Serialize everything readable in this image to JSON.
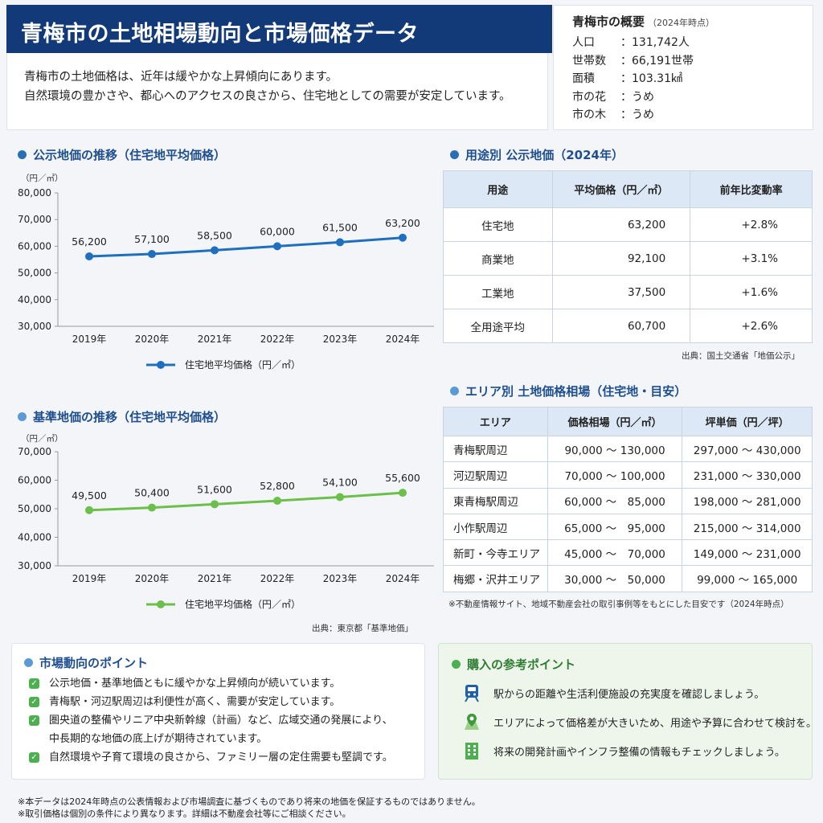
{
  "header": {
    "title": "青梅市の土地相場動向と市場価格データ",
    "intro_line1": "青梅市の土地価格は、近年は緩やかな上昇傾向にあります。",
    "intro_line2": "自然環境の豊かさや、都心へのアクセスの良さから、住宅地としての需要が安定しています。"
  },
  "overview": {
    "title": "青梅市の概要",
    "as_of": "（2024年時点）",
    "rows": [
      {
        "key": "人口",
        "value": "：131,742人"
      },
      {
        "key": "世帯数",
        "value": "：66,191世帯"
      },
      {
        "key": "面積",
        "value": "：103.31㎢"
      },
      {
        "key": "市の花",
        "value": "：うめ"
      },
      {
        "key": "市の木",
        "value": "：うめ"
      }
    ]
  },
  "chart1_section": {
    "title": "公示地価の推移（住宅地平均価格）",
    "source": ""
  },
  "chart2_section": {
    "title": "基準地価の推移（住宅地平均価格）",
    "source": "出典：東京都「基準地価」"
  },
  "chart_data": [
    {
      "type": "line",
      "title": "公示地価の推移（住宅地平均価格）",
      "ylabel": "（円／㎡）",
      "categories": [
        "2019年",
        "2020年",
        "2021年",
        "2022年",
        "2023年",
        "2024年"
      ],
      "series": [
        {
          "name": "住宅地平均価格（円／㎡）",
          "values": [
            56200,
            57100,
            58500,
            60000,
            61500,
            63200
          ]
        }
      ],
      "value_labels": [
        "56,200",
        "57,100",
        "58,500",
        "60,000",
        "61,500",
        "63,200"
      ],
      "yticks": [
        "30,000",
        "40,000",
        "50,000",
        "60,000",
        "70,000",
        "80,000"
      ],
      "ylim": [
        30000,
        80000
      ],
      "color": "#1f6fbf",
      "grid": false,
      "legend_position": "bottom"
    },
    {
      "type": "line",
      "title": "基準地価の推移（住宅地平均価格）",
      "ylabel": "（円／㎡）",
      "categories": [
        "2019年",
        "2020年",
        "2021年",
        "2022年",
        "2023年",
        "2024年"
      ],
      "series": [
        {
          "name": "住宅地平均価格（円／㎡）",
          "values": [
            49500,
            50400,
            51600,
            52800,
            54100,
            55600
          ]
        }
      ],
      "value_labels": [
        "49,500",
        "50,400",
        "51,600",
        "52,800",
        "54,100",
        "55,600"
      ],
      "yticks": [
        "30,000",
        "40,000",
        "50,000",
        "60,000",
        "70,000"
      ],
      "ylim": [
        30000,
        70000
      ],
      "color": "#6cbf4a",
      "grid": false,
      "legend_position": "bottom"
    }
  ],
  "usage_table": {
    "title": "用途別 公示地価（2024年）",
    "headers": [
      "用途",
      "平均価格（円／㎡）",
      "前年比変動率"
    ],
    "rows": [
      [
        "住宅地",
        "63,200",
        "+2.8%"
      ],
      [
        "商業地",
        "92,100",
        "+3.1%"
      ],
      [
        "工業地",
        "37,500",
        "+1.6%"
      ],
      [
        "全用途平均",
        "60,700",
        "+2.6%"
      ]
    ],
    "source": "出典：国土交通省「地価公示」"
  },
  "area_table": {
    "title": "エリア別 土地価格相場（住宅地・目安）",
    "headers": [
      "エリア",
      "価格相場（円／㎡）",
      "坪単価（円／坪）"
    ],
    "rows": [
      [
        "青梅駅周辺",
        "90,000 〜 130,000",
        "297,000 〜 430,000"
      ],
      [
        "河辺駅周辺",
        "70,000 〜 100,000",
        "231,000 〜 330,000"
      ],
      [
        "東青梅駅周辺",
        "60,000 〜　85,000",
        "198,000 〜 281,000"
      ],
      [
        "小作駅周辺",
        "65,000 〜　95,000",
        "215,000 〜 314,000"
      ],
      [
        "新町・今寺エリア",
        "45,000 〜　70,000",
        "149,000 〜 231,000"
      ],
      [
        "梅郷・沢井エリア",
        "30,000 〜　50,000",
        "99,000 〜 165,000"
      ]
    ],
    "note": "※不動産情報サイト、地域不動産会社の取引事例等をもとにした目安です（2024年時点）"
  },
  "market_points": {
    "title": "市場動向のポイント",
    "items": [
      "公示地価・基準地価ともに緩やかな上昇傾向が続いています。",
      "青梅駅・河辺駅周辺は利便性が高く、需要が安定しています。",
      "圏央道の整備やリニア中央新幹線（計画）など、広域交通の発展により、",
      "中長期的な地価の底上げが期待されています。",
      "自然環境や子育て環境の良さから、ファミリー層の定住需要も堅調です。"
    ]
  },
  "buy_points": {
    "title": "購入の参考ポイント",
    "items": [
      {
        "icon": "train-icon",
        "text": "駅からの距離や生活利便施設の充実度を確認しましょう。"
      },
      {
        "icon": "map-pin-icon",
        "text": "エリアによって価格差が大きいため、用途や予算に合わせて検討を。"
      },
      {
        "icon": "building-icon",
        "text": "将来の開発計画やインフラ整備の情報もチェックしましょう。"
      }
    ]
  },
  "footnote": {
    "line1": "※本データは2024年時点の公表情報および市場調査に基づくものであり将来の地価を保証するものではありません。",
    "line2": "※取引価格は個別の条件により異なります。詳細は不動産会社等にご相談ください。"
  }
}
